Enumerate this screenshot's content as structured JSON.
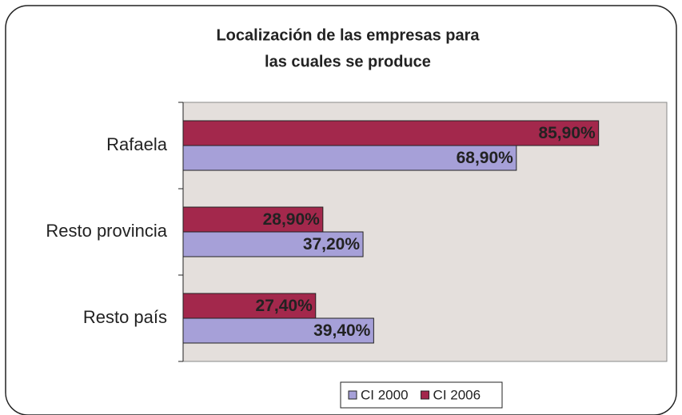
{
  "chart_data": {
    "type": "hbar",
    "title": [
      "Localización de las empresas para",
      "las cuales se produce"
    ],
    "categories": [
      "Rafaela",
      "Resto provincia",
      "Resto país"
    ],
    "series": [
      {
        "name": "CI 2000",
        "color": "#a6a0d8",
        "values": [
          68.9,
          37.2,
          39.4
        ],
        "value_labels": [
          "68,90%",
          "37,20%",
          "39,40%"
        ]
      },
      {
        "name": "CI 2006",
        "color": "#a3284c",
        "values": [
          85.9,
          28.9,
          27.4
        ],
        "value_labels": [
          "85,90%",
          "28,90%",
          "27,40%"
        ]
      }
    ],
    "xlim": [
      0,
      100
    ],
    "legend": "bottom"
  }
}
